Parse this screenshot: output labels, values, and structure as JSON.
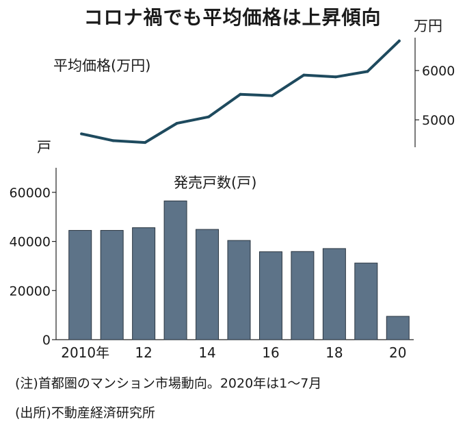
{
  "title": "コロナ禍でも平均価格は上昇傾向",
  "price_label": "平均価格(万円)",
  "price_unit": "万円",
  "count_label": "発売戸数(戸)",
  "count_unit": "戸",
  "note": "(注)首都圏のマンション市場動向。2020年は1～7月",
  "source": "(出所)不動産経済研究所",
  "colors": {
    "line": "#1e4a5e",
    "bar": "#5d7388",
    "axis": "#222222"
  },
  "chart_data": [
    {
      "type": "line",
      "title": "平均価格(万円)",
      "x": [
        2010,
        2011,
        2012,
        2013,
        2014,
        2015,
        2016,
        2017,
        2018,
        2019,
        2020
      ],
      "values": [
        4716,
        4578,
        4540,
        4929,
        5060,
        5518,
        5490,
        5908,
        5871,
        5980,
        6600
      ],
      "ylabel": "万円",
      "yticks": [
        5000,
        6000
      ],
      "yticklabels": [
        "5000",
        "6000"
      ],
      "ylim": [
        4500,
        6600
      ]
    },
    {
      "type": "bar",
      "title": "発売戸数(戸)",
      "x": [
        2010,
        2011,
        2012,
        2013,
        2014,
        2015,
        2016,
        2017,
        2018,
        2019,
        2020
      ],
      "xticklabels": [
        "2010年",
        "",
        "12",
        "",
        "14",
        "",
        "16",
        "",
        "18",
        "",
        "20"
      ],
      "values": [
        44500,
        44500,
        45600,
        56500,
        44900,
        40400,
        35800,
        35900,
        37100,
        31200,
        9500
      ],
      "ylabel": "戸",
      "yticks": [
        0,
        20000,
        40000,
        60000
      ],
      "yticklabels": [
        "0",
        "20000",
        "40000",
        "60000"
      ],
      "ylim": [
        0,
        70000
      ]
    }
  ]
}
